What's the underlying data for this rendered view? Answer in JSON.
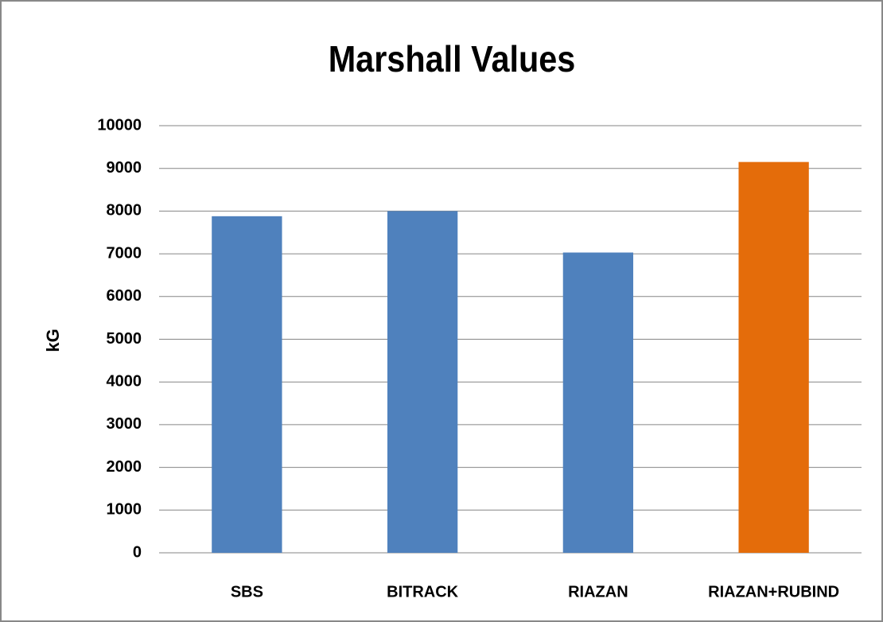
{
  "chart_data": {
    "type": "bar",
    "title": "Marshall Values",
    "y_label": "kG",
    "categories": [
      "SBS",
      "BITRACK",
      "RIAZAN",
      "RIAZAN+RUBIND"
    ],
    "values": [
      7880,
      8000,
      7030,
      9150
    ],
    "colors": [
      "#4f81bd",
      "#4f81bd",
      "#4f81bd",
      "#e46c0a"
    ],
    "ylim": [
      0,
      10000
    ],
    "yticks": [
      0,
      1000,
      2000,
      3000,
      4000,
      5000,
      6000,
      7000,
      8000,
      9000,
      10000
    ],
    "grid": true
  }
}
